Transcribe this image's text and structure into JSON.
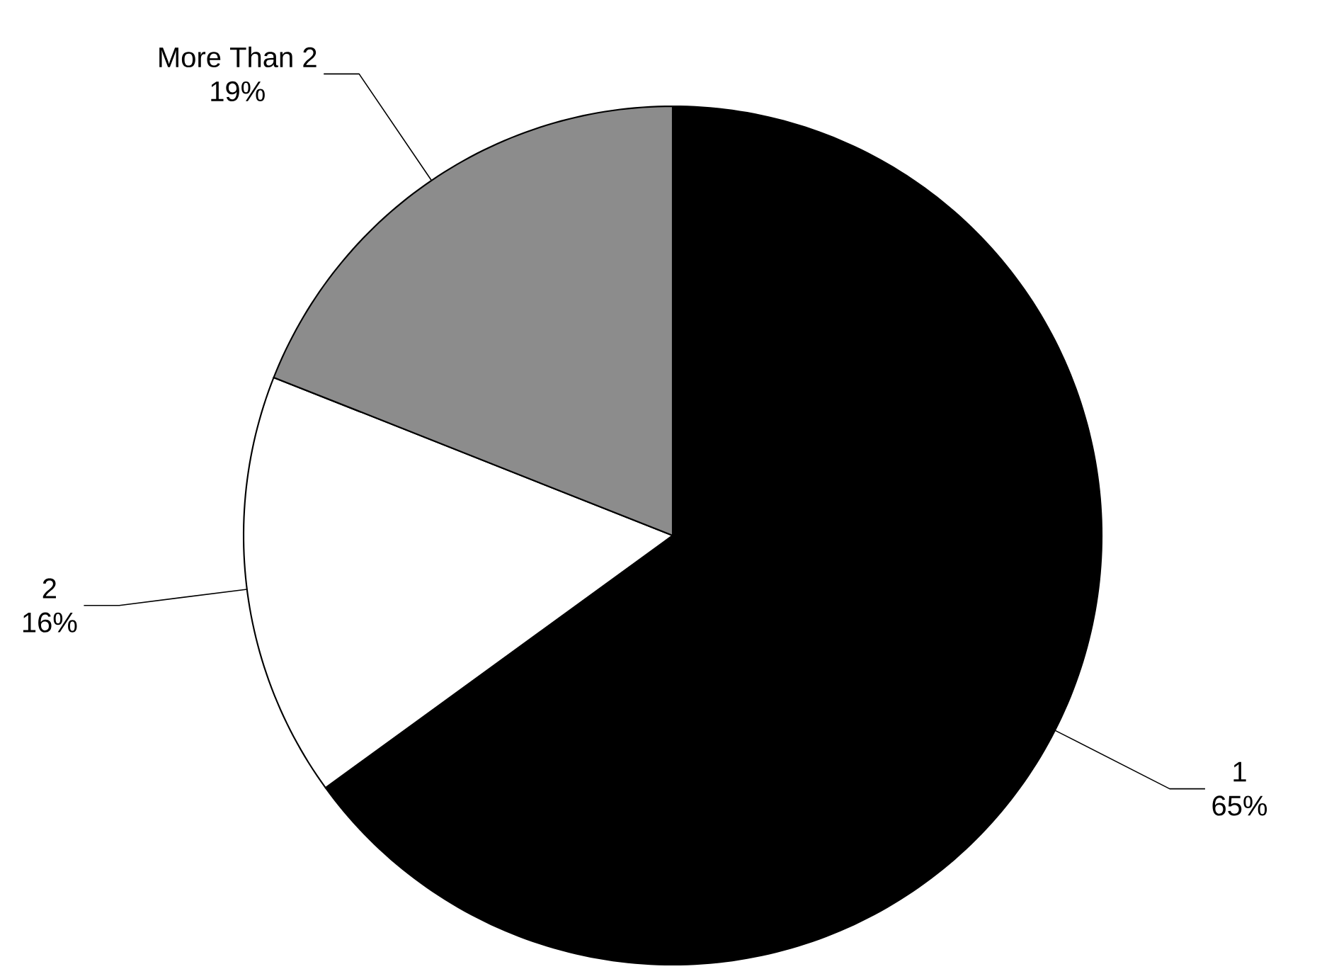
{
  "chart_data": {
    "type": "pie",
    "categories": [
      "1",
      "2",
      "More Than 2"
    ],
    "values": [
      65,
      16,
      19
    ],
    "colors": [
      "#000000",
      "#ffffff",
      "#8c8c8c"
    ],
    "value_labels": [
      "65%",
      "16%",
      "19%"
    ]
  }
}
